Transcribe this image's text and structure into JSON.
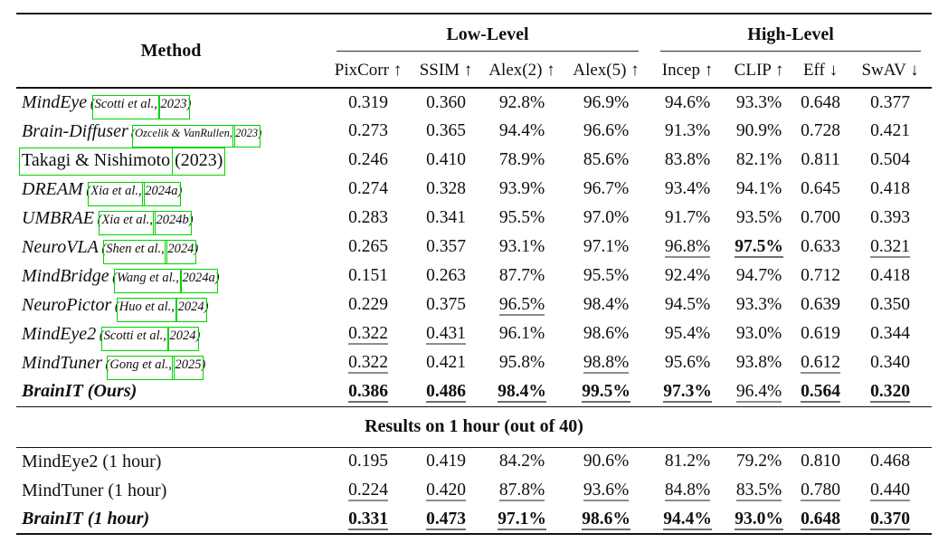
{
  "colors": {
    "citation_box_green": "#00d400",
    "rule_black": "#141414",
    "underline_gray": "#8d8d8d"
  },
  "table": {
    "method_header": "Method",
    "groups": [
      {
        "label": "Low-Level"
      },
      {
        "label": "High-Level"
      }
    ],
    "columns": [
      "PixCorr ↑",
      "SSIM ↑",
      "Alex(2) ↑",
      "Alex(5) ↑",
      "Incep ↑",
      "CLIP ↑",
      "Eff ↓",
      "SwAV ↓"
    ],
    "rows": [
      {
        "method": [
          {
            "t": "MindEye",
            "s": "i"
          },
          {
            "t": " (",
            "s": "cite"
          },
          {
            "t": "Scotti et al.,",
            "s": "cite",
            "box": true
          },
          {
            "t": " ",
            "s": "cite"
          },
          {
            "t": "2023",
            "s": "cite",
            "box": true
          },
          {
            "t": ")",
            "s": "cite"
          }
        ],
        "values": [
          {
            "t": "0.319"
          },
          {
            "t": "0.360"
          },
          {
            "t": "92.8%"
          },
          {
            "t": "96.9%"
          },
          {
            "t": "94.6%"
          },
          {
            "t": "93.3%"
          },
          {
            "t": "0.648"
          },
          {
            "t": "0.377"
          }
        ]
      },
      {
        "method": [
          {
            "t": "Brain-Diffuser",
            "s": "i"
          },
          {
            "t": " (",
            "s": "cite-sm"
          },
          {
            "t": "Ozcelik & VanRullen,",
            "s": "cite-sm",
            "box": true
          },
          {
            "t": " ",
            "s": "cite-sm"
          },
          {
            "t": "2023",
            "s": "cite-sm",
            "box": true
          },
          {
            "t": ")",
            "s": "cite-sm"
          }
        ],
        "values": [
          {
            "t": "0.273"
          },
          {
            "t": "0.365"
          },
          {
            "t": "94.4%"
          },
          {
            "t": "96.6%"
          },
          {
            "t": "91.3%"
          },
          {
            "t": "90.9%"
          },
          {
            "t": "0.728"
          },
          {
            "t": "0.421"
          }
        ]
      },
      {
        "method": [
          {
            "t": "Takagi & Nishimoto",
            "s": "r",
            "box": true
          },
          {
            "t": " ",
            "s": "r"
          },
          {
            "t": "(2023)",
            "s": "r",
            "box": true
          }
        ],
        "values": [
          {
            "t": "0.246"
          },
          {
            "t": "0.410"
          },
          {
            "t": "78.9%"
          },
          {
            "t": "85.6%"
          },
          {
            "t": "83.8%"
          },
          {
            "t": "82.1%"
          },
          {
            "t": "0.811"
          },
          {
            "t": "0.504"
          }
        ]
      },
      {
        "method": [
          {
            "t": "DREAM",
            "s": "i"
          },
          {
            "t": " (",
            "s": "cite"
          },
          {
            "t": "Xia et al.,",
            "s": "cite",
            "box": true
          },
          {
            "t": " ",
            "s": "cite"
          },
          {
            "t": "2024a",
            "s": "cite",
            "box": true
          },
          {
            "t": ")",
            "s": "cite"
          }
        ],
        "values": [
          {
            "t": "0.274"
          },
          {
            "t": "0.328"
          },
          {
            "t": "93.9%"
          },
          {
            "t": "96.7%"
          },
          {
            "t": "93.4%"
          },
          {
            "t": "94.1%"
          },
          {
            "t": "0.645"
          },
          {
            "t": "0.418"
          }
        ]
      },
      {
        "method": [
          {
            "t": "UMBRAE",
            "s": "i"
          },
          {
            "t": " (",
            "s": "cite"
          },
          {
            "t": "Xia et al.,",
            "s": "cite",
            "box": true
          },
          {
            "t": " ",
            "s": "cite"
          },
          {
            "t": "2024b",
            "s": "cite",
            "box": true
          },
          {
            "t": ")",
            "s": "cite"
          }
        ],
        "values": [
          {
            "t": "0.283"
          },
          {
            "t": "0.341"
          },
          {
            "t": "95.5%"
          },
          {
            "t": "97.0%"
          },
          {
            "t": "91.7%"
          },
          {
            "t": "93.5%"
          },
          {
            "t": "0.700"
          },
          {
            "t": "0.393"
          }
        ]
      },
      {
        "method": [
          {
            "t": "NeuroVLA",
            "s": "i"
          },
          {
            "t": " (",
            "s": "cite"
          },
          {
            "t": "Shen et al.,",
            "s": "cite",
            "box": true
          },
          {
            "t": " ",
            "s": "cite"
          },
          {
            "t": "2024",
            "s": "cite",
            "box": true
          },
          {
            "t": ")",
            "s": "cite"
          }
        ],
        "values": [
          {
            "t": "0.265"
          },
          {
            "t": "0.357"
          },
          {
            "t": "93.1%"
          },
          {
            "t": "97.1%"
          },
          {
            "t": "96.8%",
            "u": true
          },
          {
            "t": "97.5%",
            "b": true,
            "u": true
          },
          {
            "t": "0.633"
          },
          {
            "t": "0.321",
            "u": true
          }
        ]
      },
      {
        "method": [
          {
            "t": "MindBridge",
            "s": "i"
          },
          {
            "t": " (",
            "s": "cite"
          },
          {
            "t": "Wang et al.,",
            "s": "cite",
            "box": true
          },
          {
            "t": " ",
            "s": "cite"
          },
          {
            "t": "2024a",
            "s": "cite",
            "box": true
          },
          {
            "t": ")",
            "s": "cite"
          }
        ],
        "values": [
          {
            "t": "0.151"
          },
          {
            "t": "0.263"
          },
          {
            "t": "87.7%"
          },
          {
            "t": "95.5%"
          },
          {
            "t": "92.4%"
          },
          {
            "t": "94.7%"
          },
          {
            "t": "0.712"
          },
          {
            "t": "0.418"
          }
        ]
      },
      {
        "method": [
          {
            "t": "NeuroPictor",
            "s": "i"
          },
          {
            "t": " (",
            "s": "cite"
          },
          {
            "t": "Huo et al.,",
            "s": "cite",
            "box": true
          },
          {
            "t": " ",
            "s": "cite"
          },
          {
            "t": "2024",
            "s": "cite",
            "box": true
          },
          {
            "t": ")",
            "s": "cite"
          }
        ],
        "values": [
          {
            "t": "0.229"
          },
          {
            "t": "0.375"
          },
          {
            "t": "96.5%",
            "u": true
          },
          {
            "t": "98.4%"
          },
          {
            "t": "94.5%"
          },
          {
            "t": "93.3%"
          },
          {
            "t": "0.639"
          },
          {
            "t": "0.350"
          }
        ]
      },
      {
        "method": [
          {
            "t": "MindEye2",
            "s": "i"
          },
          {
            "t": " (",
            "s": "cite"
          },
          {
            "t": "Scotti et al.,",
            "s": "cite",
            "box": true
          },
          {
            "t": " ",
            "s": "cite"
          },
          {
            "t": "2024",
            "s": "cite",
            "box": true
          },
          {
            "t": ")",
            "s": "cite"
          }
        ],
        "values": [
          {
            "t": "0.322",
            "u": true
          },
          {
            "t": "0.431",
            "u": true
          },
          {
            "t": "96.1%"
          },
          {
            "t": "98.6%"
          },
          {
            "t": "95.4%"
          },
          {
            "t": "93.0%"
          },
          {
            "t": "0.619"
          },
          {
            "t": "0.344"
          }
        ]
      },
      {
        "method": [
          {
            "t": "MindTuner",
            "s": "i"
          },
          {
            "t": " (",
            "s": "cite"
          },
          {
            "t": "Gong et al.,",
            "s": "cite",
            "box": true
          },
          {
            "t": " ",
            "s": "cite"
          },
          {
            "t": "2025",
            "s": "cite",
            "box": true
          },
          {
            "t": ")",
            "s": "cite"
          }
        ],
        "values": [
          {
            "t": "0.322",
            "u": true
          },
          {
            "t": "0.421"
          },
          {
            "t": "95.8%"
          },
          {
            "t": "98.8%",
            "u": true
          },
          {
            "t": "95.6%"
          },
          {
            "t": "93.8%"
          },
          {
            "t": "0.612",
            "u": true
          },
          {
            "t": "0.340"
          }
        ]
      },
      {
        "method": [
          {
            "t": "BrainIT (Ours)",
            "s": "bi"
          }
        ],
        "values": [
          {
            "t": "0.386",
            "b": true,
            "u": true
          },
          {
            "t": "0.486",
            "b": true,
            "u": true
          },
          {
            "t": "98.4%",
            "b": true,
            "u": true
          },
          {
            "t": "99.5%",
            "b": true,
            "u": true
          },
          {
            "t": "97.3%",
            "b": true,
            "u": true
          },
          {
            "t": "96.4%",
            "u": true
          },
          {
            "t": "0.564",
            "b": true,
            "u": true
          },
          {
            "t": "0.320",
            "b": true,
            "u": true
          }
        ]
      }
    ],
    "section_header": "Results on 1 hour (out of 40)",
    "section_rows": [
      {
        "method": [
          {
            "t": "MindEye2 (1 hour)",
            "s": "r"
          }
        ],
        "values": [
          {
            "t": "0.195"
          },
          {
            "t": "0.419"
          },
          {
            "t": "84.2%"
          },
          {
            "t": "90.6%"
          },
          {
            "t": "81.2%"
          },
          {
            "t": "79.2%"
          },
          {
            "t": "0.810"
          },
          {
            "t": "0.468"
          }
        ]
      },
      {
        "method": [
          {
            "t": "MindTuner (1 hour)",
            "s": "r"
          }
        ],
        "values": [
          {
            "t": "0.224",
            "u": true
          },
          {
            "t": "0.420",
            "u": true
          },
          {
            "t": "87.8%",
            "u": true
          },
          {
            "t": "93.6%",
            "u": true
          },
          {
            "t": "84.8%",
            "u": true
          },
          {
            "t": "83.5%",
            "u": true
          },
          {
            "t": "0.780",
            "u": true
          },
          {
            "t": "0.440",
            "u": true
          }
        ]
      },
      {
        "method": [
          {
            "t": "BrainIT (1 hour)",
            "s": "bi"
          }
        ],
        "values": [
          {
            "t": "0.331",
            "b": true,
            "u": true
          },
          {
            "t": "0.473",
            "b": true,
            "u": true
          },
          {
            "t": "97.1%",
            "b": true,
            "u": true
          },
          {
            "t": "98.6%",
            "b": true,
            "u": true
          },
          {
            "t": "94.4%",
            "b": true,
            "u": true
          },
          {
            "t": "93.0%",
            "b": true,
            "u": true
          },
          {
            "t": "0.648",
            "b": true,
            "u": true
          },
          {
            "t": "0.370",
            "b": true,
            "u": true
          }
        ]
      }
    ]
  }
}
